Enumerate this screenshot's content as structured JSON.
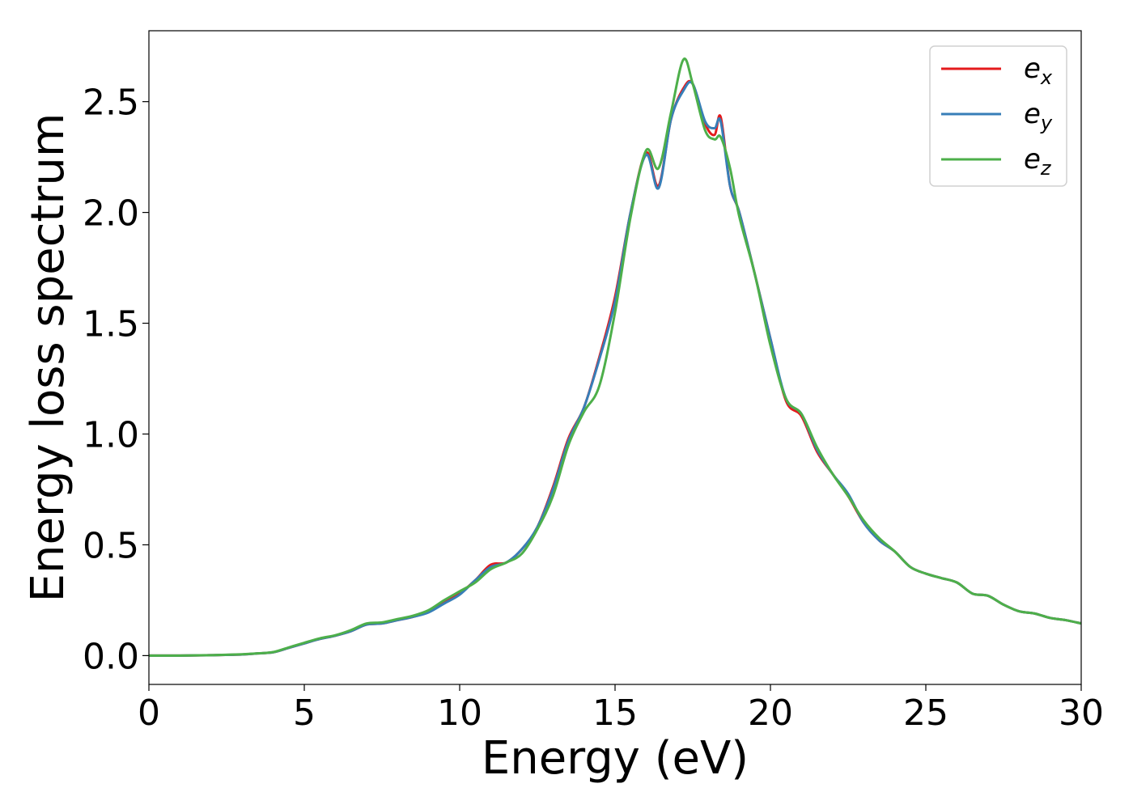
{
  "chart_data": {
    "type": "line",
    "title": "",
    "xlabel": "Energy (eV)",
    "ylabel": "Energy loss spectrum",
    "xlim": [
      0,
      30
    ],
    "ylim": [
      -0.13,
      2.82
    ],
    "xticks": [
      0,
      5,
      10,
      15,
      20,
      25,
      30
    ],
    "xtick_labels": [
      "0",
      "5",
      "10",
      "15",
      "20",
      "25",
      "30"
    ],
    "yticks": [
      0.0,
      0.5,
      1.0,
      1.5,
      2.0,
      2.5
    ],
    "ytick_labels": [
      "0.0",
      "0.5",
      "1.0",
      "1.5",
      "2.0",
      "2.5"
    ],
    "grid": false,
    "legend_position": "top-right",
    "x": [
      0,
      1,
      2,
      3,
      3.5,
      4,
      4.5,
      5,
      5.5,
      6,
      6.5,
      7,
      7.5,
      8,
      8.5,
      9,
      9.5,
      10,
      10.5,
      11,
      11.5,
      12,
      12.5,
      13,
      13.5,
      14,
      14.5,
      15,
      15.5,
      16,
      16.4,
      16.8,
      17.2,
      17.5,
      17.9,
      18.2,
      18.4,
      18.7,
      19,
      19.5,
      20,
      20.5,
      21,
      21.5,
      22,
      22.5,
      23,
      23.5,
      24,
      24.5,
      25,
      25.5,
      26,
      26.5,
      27,
      27.5,
      28,
      28.5,
      29,
      29.5,
      30
    ],
    "series": [
      {
        "name": "e_x",
        "legend_label": "e",
        "legend_sub": "x",
        "color": "#e41a1c",
        "values": [
          0,
          0,
          0.002,
          0.005,
          0.01,
          0.015,
          0.035,
          0.055,
          0.075,
          0.09,
          0.11,
          0.14,
          0.145,
          0.16,
          0.175,
          0.2,
          0.24,
          0.28,
          0.34,
          0.41,
          0.42,
          0.48,
          0.58,
          0.76,
          0.98,
          1.12,
          1.35,
          1.62,
          2.0,
          2.27,
          2.12,
          2.42,
          2.56,
          2.58,
          2.4,
          2.35,
          2.43,
          2.12,
          2.0,
          1.72,
          1.43,
          1.15,
          1.08,
          0.92,
          0.82,
          0.72,
          0.6,
          0.52,
          0.47,
          0.4,
          0.37,
          0.35,
          0.33,
          0.28,
          0.27,
          0.23,
          0.2,
          0.19,
          0.17,
          0.16,
          0.145
        ]
      },
      {
        "name": "e_y",
        "legend_label": "e",
        "legend_sub": "y",
        "color": "#377eb8",
        "values": [
          0,
          0,
          0.002,
          0.005,
          0.01,
          0.015,
          0.035,
          0.055,
          0.075,
          0.09,
          0.11,
          0.14,
          0.145,
          0.16,
          0.175,
          0.195,
          0.235,
          0.275,
          0.34,
          0.4,
          0.42,
          0.48,
          0.58,
          0.75,
          0.97,
          1.12,
          1.34,
          1.6,
          2.0,
          2.26,
          2.11,
          2.42,
          2.55,
          2.58,
          2.41,
          2.38,
          2.41,
          2.12,
          2.0,
          1.72,
          1.43,
          1.16,
          1.09,
          0.93,
          0.82,
          0.73,
          0.6,
          0.52,
          0.47,
          0.4,
          0.37,
          0.35,
          0.33,
          0.28,
          0.27,
          0.23,
          0.2,
          0.19,
          0.17,
          0.16,
          0.145
        ]
      },
      {
        "name": "e_z",
        "legend_label": "e",
        "legend_sub": "z",
        "color": "#4daf4a",
        "values": [
          0,
          0,
          0.002,
          0.006,
          0.01,
          0.016,
          0.037,
          0.058,
          0.078,
          0.092,
          0.115,
          0.145,
          0.15,
          0.165,
          0.18,
          0.205,
          0.25,
          0.29,
          0.33,
          0.39,
          0.42,
          0.46,
          0.57,
          0.72,
          0.95,
          1.1,
          1.22,
          1.55,
          1.98,
          2.28,
          2.2,
          2.45,
          2.69,
          2.58,
          2.37,
          2.33,
          2.34,
          2.2,
          1.98,
          1.72,
          1.4,
          1.16,
          1.09,
          0.94,
          0.82,
          0.72,
          0.61,
          0.53,
          0.47,
          0.4,
          0.37,
          0.35,
          0.33,
          0.28,
          0.27,
          0.23,
          0.2,
          0.19,
          0.17,
          0.16,
          0.145
        ]
      }
    ]
  }
}
